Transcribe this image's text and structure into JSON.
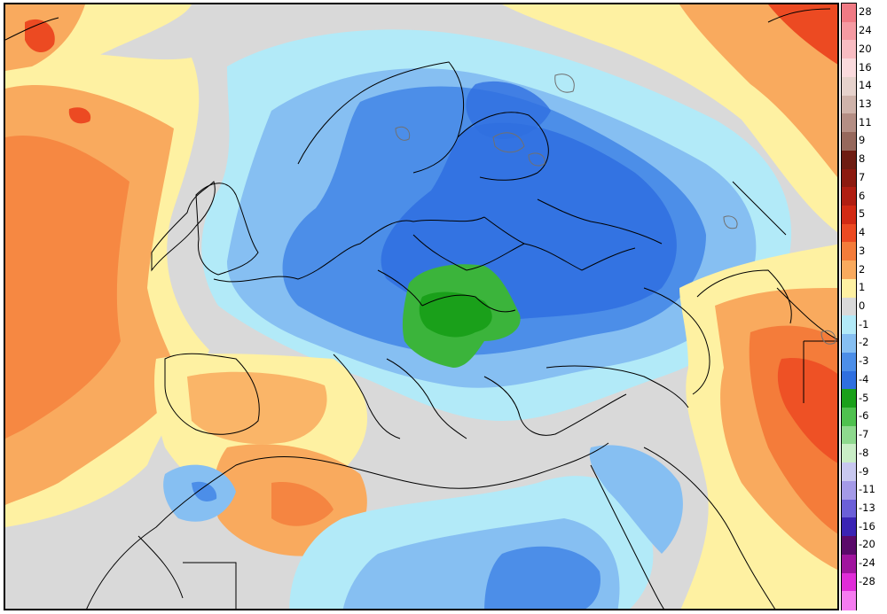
{
  "legend": {
    "levels": [
      {
        "label": "28",
        "color": "#f07a84"
      },
      {
        "label": "24",
        "color": "#f59aa2"
      },
      {
        "label": "20",
        "color": "#f8bcc2"
      },
      {
        "label": "16",
        "color": "#fadadd"
      },
      {
        "label": "14",
        "color": "#e6d2cc"
      },
      {
        "label": "13",
        "color": "#cfb3aa"
      },
      {
        "label": "11",
        "color": "#b48e84"
      },
      {
        "label": "9",
        "color": "#96685c"
      },
      {
        "label": "8",
        "color": "#6e1c12"
      },
      {
        "label": "7",
        "color": "#8c1a10"
      },
      {
        "label": "6",
        "color": "#b01e12"
      },
      {
        "label": "5",
        "color": "#d22a14"
      },
      {
        "label": "4",
        "color": "#ec4a22"
      },
      {
        "label": "3",
        "color": "#f47c3a"
      },
      {
        "label": "2",
        "color": "#f9aa5e"
      },
      {
        "label": "1",
        "color": "#fef1a2"
      },
      {
        "label": "0",
        "color": "#d9d9d9"
      },
      {
        "label": "-1",
        "color": "#b2eaf8"
      },
      {
        "label": "-2",
        "color": "#86bff2"
      },
      {
        "label": "-3",
        "color": "#4c8ee8"
      },
      {
        "label": "-4",
        "color": "#2f6fe0"
      },
      {
        "label": "-5",
        "color": "#1aa01a"
      },
      {
        "label": "-6",
        "color": "#4fc14f"
      },
      {
        "label": "-7",
        "color": "#8ed98e"
      },
      {
        "label": "-8",
        "color": "#c9eec6"
      },
      {
        "label": "-9",
        "color": "#c8c8f0"
      },
      {
        "label": "-11",
        "color": "#a49ae8"
      },
      {
        "label": "-13",
        "color": "#6b5fd8"
      },
      {
        "label": "-16",
        "color": "#3a24b4"
      },
      {
        "label": "-20",
        "color": "#5a0a6a"
      },
      {
        "label": "-24",
        "color": "#a0149e"
      },
      {
        "label": "-28",
        "color": "#e02cd8"
      },
      {
        "label": "",
        "color": "#f57cf0"
      }
    ]
  },
  "palette": {
    "neutral": "#d9d9d9",
    "warm1": "#fef1a2",
    "warm2": "#f9aa5e",
    "warm3": "#f47c3a",
    "warm4": "#ec4a22",
    "cool1": "#b2eaf8",
    "cool2": "#86bff2",
    "cool3": "#4c8ee8",
    "cool4": "#2f6fe0",
    "green1": "#3bb43b",
    "green2": "#1aa01a",
    "border_line": "#000000",
    "lake_line": "#707070"
  }
}
